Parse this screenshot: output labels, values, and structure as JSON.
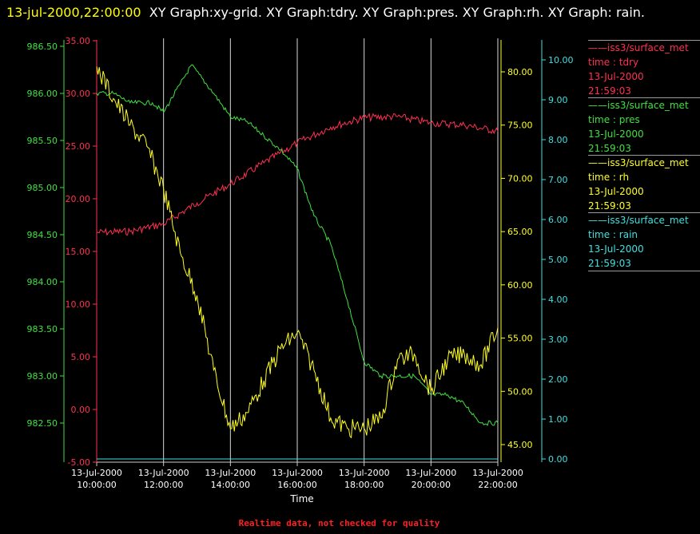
{
  "header": {
    "timestamp": "13-jul-2000,22:00:00",
    "graphs": "XY Graph:xy-grid.  XY Graph:tdry.  XY Graph:pres.  XY Graph:rh.  XY Graph: rain."
  },
  "footer": "Realtime data, not checked for quality",
  "legend": [
    {
      "name": "iss3/surface_met",
      "line2": "time : tdry",
      "date": "13-Jul-2000",
      "time": "21:59:03",
      "color": "#ff3050"
    },
    {
      "name": "iss3/surface_met",
      "line2": "time : pres",
      "date": "13-Jul-2000",
      "time": "21:59:03",
      "color": "#40e040"
    },
    {
      "name": "iss3/surface_met",
      "line2": "time : rh",
      "date": "13-Jul-2000",
      "time": "21:59:03",
      "color": "#ffff20"
    },
    {
      "name": "iss3/surface_met",
      "line2": "time : rain",
      "date": "13-Jul-2000",
      "time": "21:59:03",
      "color": "#40e0e0"
    }
  ],
  "chart_data": {
    "type": "line",
    "xlabel": "Time",
    "x_range": [
      "10:00:00",
      "22:00:00"
    ],
    "x_ticks": [
      {
        "date": "13-Jul-2000",
        "time": "10:00:00"
      },
      {
        "date": "13-Jul-2000",
        "time": "12:00:00"
      },
      {
        "date": "13-Jul-2000",
        "time": "14:00:00"
      },
      {
        "date": "13-Jul-2000",
        "time": "16:00:00"
      },
      {
        "date": "13-Jul-2000",
        "time": "18:00:00"
      },
      {
        "date": "13-Jul-2000",
        "time": "20:00:00"
      },
      {
        "date": "13-Jul-2000",
        "time": "22:00:00"
      }
    ],
    "grid": "vertical lines at x ticks",
    "axes": [
      {
        "id": "tdry",
        "side": "left-inner",
        "color": "#ff3050",
        "range": [
          -5,
          35
        ],
        "ticks": [
          "-5.00",
          "0.00",
          "5.00",
          "10.00",
          "15.00",
          "20.00",
          "25.00",
          "30.00",
          "35.00"
        ]
      },
      {
        "id": "pres",
        "side": "left-outer",
        "color": "#40e040",
        "range": [
          982.5,
          986.5
        ],
        "ticks": [
          "982.50",
          "983.00",
          "983.50",
          "984.00",
          "984.50",
          "985.00",
          "985.50",
          "986.00",
          "986.50"
        ]
      },
      {
        "id": "rh",
        "side": "right-inner",
        "color": "#ffff20",
        "range": [
          45,
          80
        ],
        "ticks": [
          "45.00",
          "50.00",
          "55.00",
          "60.00",
          "65.00",
          "70.00",
          "75.00",
          "80.00"
        ]
      },
      {
        "id": "rain",
        "side": "right-outer",
        "color": "#40e0e0",
        "range": [
          0,
          10
        ],
        "ticks": [
          "0.00",
          "1.00",
          "2.00",
          "3.00",
          "4.00",
          "5.00",
          "6.00",
          "7.00",
          "8.00",
          "9.00",
          "10.00"
        ]
      }
    ],
    "series": [
      {
        "axis": "tdry",
        "color": "#ff3050",
        "x": [
          "10:00",
          "11:00",
          "12:00",
          "13:00",
          "14:00",
          "15:00",
          "16:00",
          "17:00",
          "18:00",
          "19:00",
          "20:00",
          "21:00",
          "22:00"
        ],
        "y": [
          16.8,
          16.9,
          17.6,
          19.6,
          21.4,
          23.4,
          25.3,
          26.8,
          27.7,
          27.8,
          27.2,
          27.0,
          26.4
        ]
      },
      {
        "axis": "pres",
        "color": "#40e040",
        "x": [
          "10:00",
          "10:30",
          "11:00",
          "11:40",
          "12:00",
          "12:30",
          "12:50",
          "13:30",
          "14:00",
          "14:30",
          "15:00",
          "15:30",
          "16:00",
          "16:30",
          "17:00",
          "17:30",
          "18:00",
          "18:30",
          "19:00",
          "19:30",
          "20:00",
          "20:30",
          "21:00",
          "21:30",
          "22:00"
        ],
        "y": [
          986.0,
          986.0,
          985.9,
          985.9,
          985.8,
          986.1,
          986.3,
          986.0,
          985.75,
          985.7,
          985.55,
          985.4,
          985.2,
          984.7,
          984.4,
          983.8,
          983.15,
          983.0,
          983.0,
          983.0,
          982.8,
          982.8,
          982.7,
          982.5,
          982.5
        ]
      },
      {
        "axis": "rh",
        "color": "#ffff20",
        "x": [
          "10:00",
          "10:30",
          "11:00",
          "11:30",
          "12:00",
          "12:30",
          "13:00",
          "13:30",
          "14:00",
          "14:30",
          "15:00",
          "15:30",
          "16:00",
          "16:30",
          "17:00",
          "17:30",
          "18:00",
          "18:30",
          "19:00",
          "19:30",
          "20:00",
          "20:30",
          "21:00",
          "21:30",
          "22:00"
        ],
        "y": [
          80.5,
          77.5,
          75.0,
          73.0,
          69.0,
          63.0,
          59.0,
          52.0,
          46.5,
          48.0,
          51.0,
          54.0,
          55.5,
          52.0,
          47.5,
          46.5,
          46.5,
          47.5,
          53.0,
          53.5,
          50.0,
          53.0,
          53.5,
          52.5,
          56.0
        ]
      },
      {
        "axis": "rain",
        "color": "#40e0e0",
        "x": [
          "10:00",
          "22:00"
        ],
        "y": [
          0.0,
          0.0
        ]
      }
    ]
  }
}
